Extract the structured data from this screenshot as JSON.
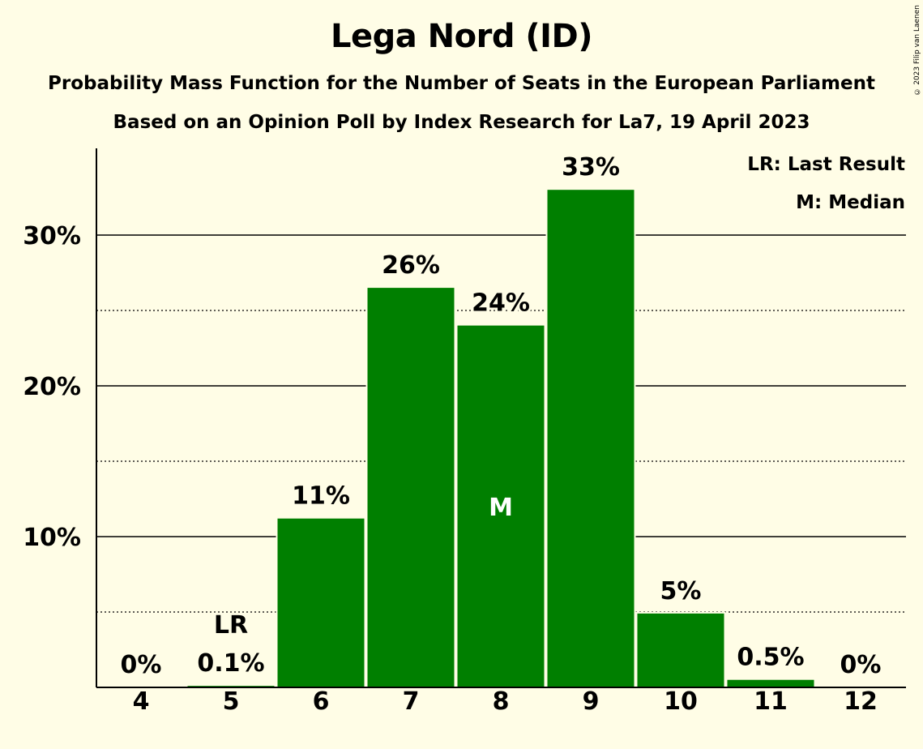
{
  "title": "Lega Nord (ID)",
  "subtitle": "Probability Mass Function for the Number of Seats in the European Parliament",
  "source": "Based on an Opinion Poll by Index Research for La7, 19 April 2023",
  "copyright": "© 2023 Filip van Laenen",
  "legend": {
    "last_result": "LR: Last Result",
    "median": "M: Median"
  },
  "colors": {
    "bar": "#007f00",
    "background": "#fffde6"
  },
  "chart_data": {
    "type": "bar",
    "categories": [
      "4",
      "5",
      "6",
      "7",
      "8",
      "9",
      "10",
      "11",
      "12"
    ],
    "values": [
      0,
      0.1,
      11.2,
      26.5,
      24.0,
      33.0,
      4.9,
      0.5,
      0
    ],
    "data_labels": [
      "0%",
      "0.1%",
      "11%",
      "26%",
      "24%",
      "33%",
      "5%",
      "0.5%",
      "0%"
    ],
    "ylim": [
      0,
      35
    ],
    "yticks": [
      10,
      20,
      30
    ],
    "ytick_labels": [
      "10%",
      "20%",
      "30%"
    ],
    "minor_gridlines": [
      5,
      15,
      25
    ],
    "last_result_category": "5",
    "last_result_marker": "LR",
    "median_category": "8",
    "median_marker": "M",
    "legend_position": "top-right"
  }
}
